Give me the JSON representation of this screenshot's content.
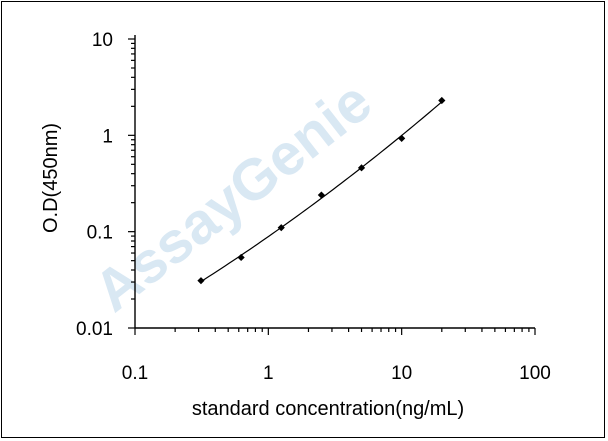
{
  "chart_data": {
    "type": "scatter",
    "xscale": "log",
    "yscale": "log",
    "xlim": [
      0.1,
      100
    ],
    "ylim": [
      0.01,
      10
    ],
    "xlabel": "standard concentration(ng/mL)",
    "ylabel": "O.D(450nm)",
    "x_ticks": [
      0.1,
      1,
      10,
      100
    ],
    "x_tick_labels": [
      "0.1",
      "1",
      "10",
      "100"
    ],
    "y_ticks": [
      0.01,
      0.1,
      1,
      10
    ],
    "y_tick_labels": [
      "0.01",
      "0.1",
      "1",
      "10"
    ],
    "grid": false,
    "fit_curve": true,
    "x": [
      0.3125,
      0.625,
      1.25,
      2.5,
      5,
      10,
      20
    ],
    "y": [
      0.031,
      0.054,
      0.11,
      0.24,
      0.46,
      0.93,
      2.3
    ]
  },
  "watermark": "AssayGenie",
  "colors": {
    "axis": "#000000",
    "points": "#000000",
    "curve": "#000000",
    "watermark": "#b9d6ea"
  }
}
